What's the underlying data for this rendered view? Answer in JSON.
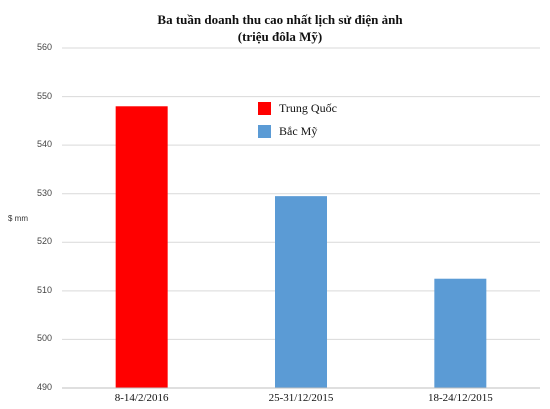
{
  "chart_data": {
    "type": "bar",
    "title": "Ba tuần doanh thu cao nhất lịch sử điện ảnh",
    "subtitle": "(triệu đôla Mỹ)",
    "ylabel": "$ mm",
    "xlabel": "",
    "categories": [
      "8-14/2/2016",
      "25-31/12/2015",
      "18-24/12/2015"
    ],
    "values": [
      548,
      529.5,
      512.5
    ],
    "bar_colors": [
      "#ff0000",
      "#5b9bd5",
      "#5b9bd5"
    ],
    "ylim": [
      490,
      560
    ],
    "yticks": [
      "490",
      "500",
      "510",
      "520",
      "530",
      "540",
      "550",
      "560"
    ],
    "grid": true,
    "legend_position": "top-center",
    "legend": [
      {
        "label": "Trung Quốc",
        "color": "#ff0000"
      },
      {
        "label": "Bắc Mỹ",
        "color": "#5b9bd5"
      }
    ]
  }
}
